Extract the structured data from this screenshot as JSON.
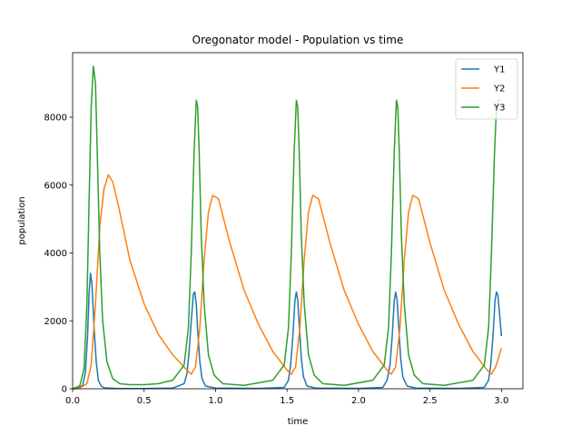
{
  "chart_data": {
    "type": "line",
    "title": "Oregonator model - Population vs time",
    "xlabel": "time",
    "ylabel": "population",
    "xlim": [
      0.0,
      3.15
    ],
    "ylim": [
      0,
      9900
    ],
    "xticks": [
      0.0,
      0.5,
      1.0,
      1.5,
      2.0,
      2.5,
      3.0
    ],
    "xtick_labels": [
      "0.0",
      "0.5",
      "1.0",
      "1.5",
      "2.0",
      "2.5",
      "3.0"
    ],
    "yticks": [
      0,
      2000,
      4000,
      6000,
      8000
    ],
    "ytick_labels": [
      "0",
      "2000",
      "4000",
      "6000",
      "8000"
    ],
    "grid": false,
    "legend": "top-right",
    "series": [
      {
        "name": "Y1",
        "color": "#1f77b4",
        "x": [
          0.0,
          0.04,
          0.07,
          0.09,
          0.105,
          0.115,
          0.125,
          0.135,
          0.15,
          0.165,
          0.18,
          0.2,
          0.22,
          0.3,
          0.5,
          0.7,
          0.78,
          0.8,
          0.815,
          0.83,
          0.845,
          0.855,
          0.865,
          0.875,
          0.89,
          0.905,
          0.93,
          1.0,
          1.3,
          1.48,
          1.51,
          1.525,
          1.54,
          1.555,
          1.565,
          1.575,
          1.585,
          1.6,
          1.615,
          1.64,
          1.7,
          2.0,
          2.17,
          2.2,
          2.22,
          2.235,
          2.25,
          2.26,
          2.27,
          2.28,
          2.295,
          2.31,
          2.34,
          2.4,
          2.7,
          2.88,
          2.91,
          2.925,
          2.94,
          2.955,
          2.965,
          2.975,
          2.985,
          3.0
        ],
        "y": [
          0,
          10,
          100,
          500,
          1600,
          2800,
          3400,
          3100,
          1800,
          800,
          250,
          80,
          30,
          10,
          5,
          20,
          150,
          450,
          1100,
          2000,
          2800,
          2850,
          2500,
          1700,
          800,
          300,
          80,
          20,
          10,
          40,
          250,
          700,
          1500,
          2600,
          2850,
          2600,
          1900,
          900,
          350,
          80,
          20,
          10,
          40,
          250,
          700,
          1500,
          2600,
          2850,
          2600,
          1900,
          900,
          350,
          80,
          20,
          10,
          40,
          250,
          700,
          1500,
          2600,
          2850,
          2750,
          2300,
          1550
        ]
      },
      {
        "name": "Y2",
        "color": "#ff7f0e",
        "x": [
          0.0,
          0.05,
          0.1,
          0.13,
          0.16,
          0.19,
          0.22,
          0.25,
          0.28,
          0.32,
          0.4,
          0.5,
          0.6,
          0.7,
          0.8,
          0.83,
          0.86,
          0.89,
          0.92,
          0.95,
          0.98,
          1.02,
          1.1,
          1.2,
          1.3,
          1.4,
          1.5,
          1.53,
          1.56,
          1.59,
          1.62,
          1.65,
          1.68,
          1.72,
          1.8,
          1.9,
          2.0,
          2.1,
          2.2,
          2.23,
          2.26,
          2.29,
          2.32,
          2.35,
          2.38,
          2.42,
          2.5,
          2.6,
          2.7,
          2.8,
          2.9,
          2.93,
          2.96,
          3.0
        ],
        "y": [
          0,
          20,
          150,
          700,
          2500,
          4800,
          5900,
          6300,
          6100,
          5400,
          3800,
          2500,
          1600,
          1000,
          550,
          430,
          650,
          1800,
          3800,
          5200,
          5700,
          5600,
          4300,
          2900,
          1900,
          1100,
          550,
          430,
          650,
          1800,
          3800,
          5200,
          5700,
          5600,
          4300,
          2900,
          1900,
          1100,
          550,
          430,
          650,
          1800,
          3800,
          5200,
          5700,
          5600,
          4300,
          2900,
          1900,
          1100,
          550,
          430,
          650,
          1200
        ]
      },
      {
        "name": "Y3",
        "color": "#2ca02c",
        "x": [
          0.0,
          0.05,
          0.08,
          0.1,
          0.115,
          0.13,
          0.145,
          0.16,
          0.175,
          0.19,
          0.21,
          0.24,
          0.28,
          0.33,
          0.4,
          0.5,
          0.6,
          0.7,
          0.78,
          0.81,
          0.83,
          0.85,
          0.865,
          0.875,
          0.885,
          0.9,
          0.92,
          0.95,
          0.99,
          1.05,
          1.2,
          1.4,
          1.48,
          1.51,
          1.53,
          1.55,
          1.565,
          1.575,
          1.585,
          1.6,
          1.62,
          1.65,
          1.69,
          1.75,
          1.9,
          2.1,
          2.18,
          2.21,
          2.23,
          2.25,
          2.265,
          2.275,
          2.285,
          2.3,
          2.32,
          2.35,
          2.39,
          2.45,
          2.6,
          2.8,
          2.88,
          2.91,
          2.93,
          2.95,
          2.965,
          2.98,
          3.0
        ],
        "y": [
          0,
          80,
          600,
          2500,
          5500,
          8300,
          9500,
          9000,
          6500,
          4000,
          2000,
          800,
          300,
          150,
          120,
          120,
          150,
          250,
          700,
          1800,
          4000,
          7000,
          8500,
          8300,
          7000,
          4500,
          2500,
          1000,
          400,
          150,
          100,
          250,
          700,
          1800,
          4000,
          7000,
          8500,
          8300,
          7000,
          4500,
          2500,
          1000,
          400,
          150,
          100,
          250,
          700,
          1800,
          4000,
          7000,
          8500,
          8300,
          7000,
          4500,
          2500,
          1000,
          400,
          150,
          100,
          250,
          700,
          1800,
          4000,
          6800,
          8300,
          8500,
          8500
        ]
      }
    ]
  }
}
